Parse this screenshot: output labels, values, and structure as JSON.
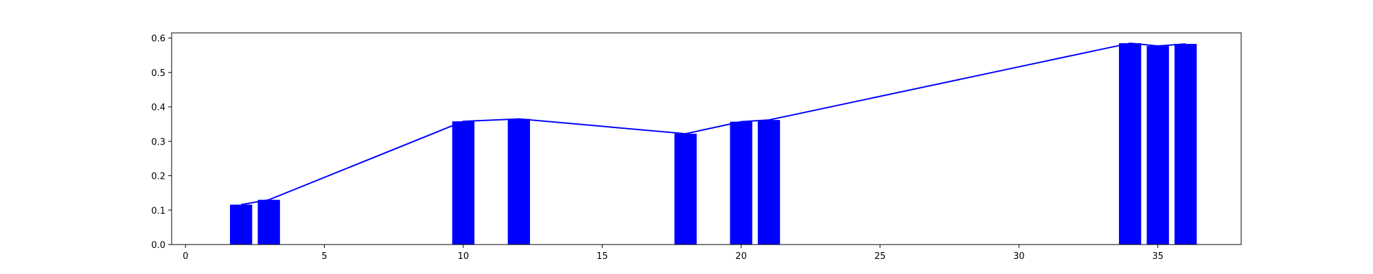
{
  "chart_data": {
    "type": "bar",
    "title": "",
    "xlabel": "",
    "ylabel": "",
    "xlim": [
      -0.5,
      38
    ],
    "ylim": [
      0,
      0.615
    ],
    "xticks": [
      0,
      5,
      10,
      15,
      20,
      25,
      30,
      35
    ],
    "yticks": [
      0.0,
      0.1,
      0.2,
      0.3,
      0.4,
      0.5,
      0.6
    ],
    "ytick_labels": [
      "0.0",
      "0.1",
      "0.2",
      "0.3",
      "0.4",
      "0.5",
      "0.6"
    ],
    "grid": false,
    "legend": "none",
    "bar_width": 0.8,
    "color": "#0000ff",
    "series": [
      {
        "type": "bar",
        "x": [
          2,
          3,
          10,
          12,
          18,
          20,
          21,
          34,
          35,
          36
        ],
        "values": [
          0.116,
          0.13,
          0.358,
          0.365,
          0.322,
          0.357,
          0.362,
          0.585,
          0.577,
          0.583
        ]
      },
      {
        "type": "line",
        "x": [
          2,
          3,
          10,
          12,
          18,
          20,
          21,
          34,
          35,
          36
        ],
        "values": [
          0.116,
          0.13,
          0.358,
          0.365,
          0.322,
          0.357,
          0.362,
          0.585,
          0.577,
          0.583
        ]
      }
    ]
  }
}
